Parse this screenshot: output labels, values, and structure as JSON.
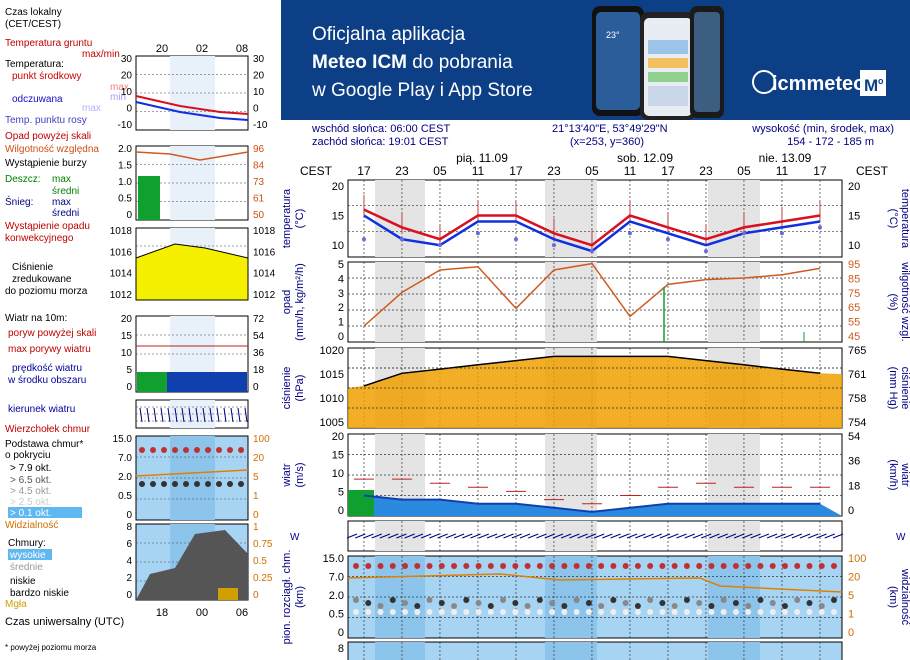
{
  "banner": {
    "line1": "Oficjalna aplikacja",
    "line2_bold": "Meteo ICM",
    "line2_rest": " do pobrania",
    "line3": "w Google Play i App Store",
    "logo_text": "icmmeteo",
    "logo_badge": "M",
    "logo_badge_sup": "o",
    "phone_temp": "23°",
    "bg_color": "#0d3f86"
  },
  "info": {
    "sunrise": "wschód słońca: 06:00 CEST",
    "sunset": "zachód słońca: 19:01 CEST",
    "coords": "21°13'40\"E, 53°49'29\"N",
    "grid": "(x=253,  y=360)",
    "elev_label": "wysokość (min, środek, max)",
    "elev_values": "154 - 172 - 185 m"
  },
  "legend": {
    "local_time_l1": "Czas lokalny",
    "local_time_l2": "(CET/CEST)",
    "top_ticks": [
      "20",
      "02",
      "08"
    ],
    "temp": {
      "ground": "Temperatura gruntu",
      "ground_sub": "max/min",
      "title": "Temperatura:",
      "mid": "punkt środkowy",
      "max": "max",
      "min": "min",
      "felt": "odczuwana",
      "felt_max": "max",
      "felt_min": "min",
      "dew": "Temp. punktu rosy",
      "ticks": [
        "30",
        "20",
        "10",
        "0",
        "-10"
      ]
    },
    "precip": {
      "above": "Opad powyżej skali",
      "humidity": "Wilgotność względna",
      "storm": "Wystąpienie burzy",
      "rain": "Deszcz:",
      "rain_max": "max",
      "mean": "średni",
      "snow": "Śnieg:",
      "snow_max": "max",
      "snow_mean": "średni",
      "occur_l1": "Wystąpienie opadu",
      "occur_l2": "konwekcyjnego",
      "ticks_l": [
        "2.0",
        "1.5",
        "1.0",
        "0.5",
        "0"
      ],
      "ticks_r": [
        "96",
        "84",
        "73",
        "61",
        "50"
      ]
    },
    "pressure": {
      "l1": "Ciśnienie",
      "l2": "zredukowane",
      "l3": "do poziomu morza",
      "ticks": [
        "1018",
        "1016",
        "1014",
        "1012"
      ]
    },
    "wind": {
      "title": "Wiatr na 10m:",
      "gust_above": "poryw powyżej skali",
      "gust_max": "max porywy wiatru",
      "speed_l1": "prędkość wiatru",
      "speed_l2": "w środku obszaru",
      "ticks_l": [
        "20",
        "15",
        "10",
        "5",
        "0"
      ],
      "ticks_r": [
        "72",
        "54",
        "36",
        "18",
        "0"
      ]
    },
    "winddir": "kierunek wiatru",
    "cloudbase": {
      "top": "Wierzchołek chmur",
      "l1": "Podstawa chmur*",
      "l2": "o pokryciu",
      "o1": "> 7.9 okt.",
      "o2": "> 6.5 okt.",
      "o3": "> 4.5 okt.",
      "o4": "> 2.5 okt.",
      "o5": "> 0.1 okt.",
      "visibility": "Widzialność",
      "ticks_l": [
        "15.0",
        "7.0",
        "2.0",
        "0.5",
        "0"
      ],
      "ticks_r": [
        "100",
        "20",
        "5",
        "1",
        "0"
      ]
    },
    "clouds": {
      "title": "Chmury:",
      "high": "wysokie",
      "mid": "średnie",
      "low": "niskie",
      "vlow": "bardzo niskie",
      "fog": "Mgła",
      "ticks_l": [
        "8",
        "6",
        "4",
        "2",
        "0"
      ],
      "ticks_r": [
        "1",
        "0.75",
        "0.5",
        "0.25",
        "0"
      ]
    },
    "utc_label": "Czas uniwersalny (UTC)",
    "utc_ticks": [
      "18",
      "00",
      "06"
    ],
    "footnote": "* powyżej poziomu morza"
  },
  "main": {
    "tz": "CEST",
    "days": [
      "pią. 11.09",
      "sob. 12.09",
      "nie. 13.09"
    ],
    "hours": [
      "17",
      "23",
      "05",
      "11",
      "17",
      "23",
      "05",
      "11",
      "17",
      "23",
      "05",
      "11",
      "17"
    ],
    "temp": {
      "left": "temperatura",
      "unit_l": "(°C)",
      "right": "temperatura",
      "unit_r": "(°C)",
      "ticks": [
        "20",
        "15",
        "10"
      ]
    },
    "precip": {
      "left": "opad",
      "unit_l": "(mm/h, kg/m²/h)",
      "right": "wilgotność wzgl.",
      "unit_r": "(%)",
      "ticks_l": [
        "5",
        "4",
        "3",
        "2",
        "1",
        "0"
      ],
      "ticks_r": [
        "95",
        "85",
        "75",
        "65",
        "55",
        "45"
      ]
    },
    "pressure": {
      "left": "ciśnienie",
      "unit_l": "(hPa)",
      "right": "ciśnienie",
      "unit_r": "(mm Hg)",
      "ticks_l": [
        "1020",
        "1015",
        "1010",
        "1005"
      ],
      "ticks_r": [
        "765",
        "761",
        "758",
        "754"
      ]
    },
    "wind": {
      "left": "wiatr",
      "unit_l": "(m/s)",
      "right": "wiatr",
      "unit_r": "(km/h)",
      "ticks_l": [
        "20",
        "15",
        "10",
        "5",
        "0"
      ],
      "ticks_r": [
        "54",
        "36",
        "18",
        "0"
      ]
    },
    "winddir_label_l": "W",
    "winddir_label_r": "W",
    "cloudbase": {
      "left": "pion. rozciągł. chm.",
      "unit_l": "(km)",
      "right": "widzialność",
      "unit_r": "(km)",
      "ticks_l": [
        "15.0",
        "7.0",
        "2.0",
        "0.5",
        "0"
      ],
      "ticks_r": [
        "100",
        "20",
        "5",
        "1",
        "0"
      ]
    },
    "clouds_tick": "8"
  },
  "colors": {
    "temp_line": "#d81020",
    "felt_line": "#1030e0",
    "dew": "#6a6ad8",
    "humidity": "#d05a20",
    "pressure_fill": "#f0a000",
    "wind_fill": "#1040b0",
    "wind_green": "#10a030",
    "gust": "#c02020",
    "sky": "#a8d4f4"
  },
  "chart_data": [
    {
      "type": "line",
      "title": "temperatura",
      "xlabel": "CEST",
      "ylabel": "(°C)",
      "categories": [
        "17",
        "23",
        "05",
        "11",
        "17",
        "23",
        "05",
        "11",
        "17",
        "23",
        "05",
        "11",
        "17"
      ],
      "series": [
        {
          "name": "punkt środkowy",
          "values": [
            16,
            13,
            11,
            15,
            15,
            12,
            10,
            15,
            13,
            11,
            13,
            14,
            15
          ]
        },
        {
          "name": "odczuwana",
          "values": [
            15,
            11,
            10,
            14,
            14,
            11,
            9,
            14,
            12,
            10,
            12,
            13,
            14
          ]
        },
        {
          "name": "Temp. punktu rosy",
          "values": [
            11,
            11,
            10,
            12,
            11,
            10,
            9,
            12,
            11,
            9,
            12,
            12,
            13
          ]
        }
      ],
      "ylim": [
        8,
        21
      ]
    },
    {
      "type": "line",
      "title": "opad / wilgotność wzgl.",
      "categories": [
        "17",
        "23",
        "05",
        "11",
        "17",
        "23",
        "05",
        "11",
        "17",
        "23",
        "05",
        "11",
        "17"
      ],
      "series": [
        {
          "name": "Wilgotność względna",
          "values": [
            55,
            76,
            90,
            92,
            66,
            90,
            94,
            61,
            81,
            84,
            85,
            87,
            91
          ]
        }
      ],
      "ylim": [
        45,
        95
      ]
    },
    {
      "type": "area",
      "title": "ciśnienie",
      "ylabel": "(hPa)",
      "categories": [
        "17",
        "23",
        "05",
        "11",
        "17",
        "23",
        "05",
        "11",
        "17",
        "23",
        "05",
        "11",
        "17"
      ],
      "series": [
        {
          "name": "Ciśnienie",
          "values": [
            1015,
            1018,
            1019,
            1020,
            1021,
            1022,
            1022,
            1022,
            1022,
            1021,
            1020,
            1019,
            1018
          ]
        }
      ],
      "ylim": [
        1005,
        1024
      ]
    },
    {
      "type": "area",
      "title": "wiatr",
      "ylabel": "(m/s)",
      "categories": [
        "17",
        "23",
        "05",
        "11",
        "17",
        "23",
        "05",
        "11",
        "17",
        "23",
        "05",
        "11",
        "17"
      ],
      "series": [
        {
          "name": "prędkość wiatru",
          "values": [
            5,
            4,
            4,
            3,
            3,
            2,
            1,
            2,
            3,
            3,
            3,
            3,
            3
          ]
        },
        {
          "name": "max porywy wiatru",
          "values": [
            9,
            9,
            8,
            7,
            6,
            4,
            3,
            5,
            7,
            8,
            7,
            7,
            7
          ]
        }
      ],
      "ylim": [
        0,
        20
      ]
    }
  ]
}
